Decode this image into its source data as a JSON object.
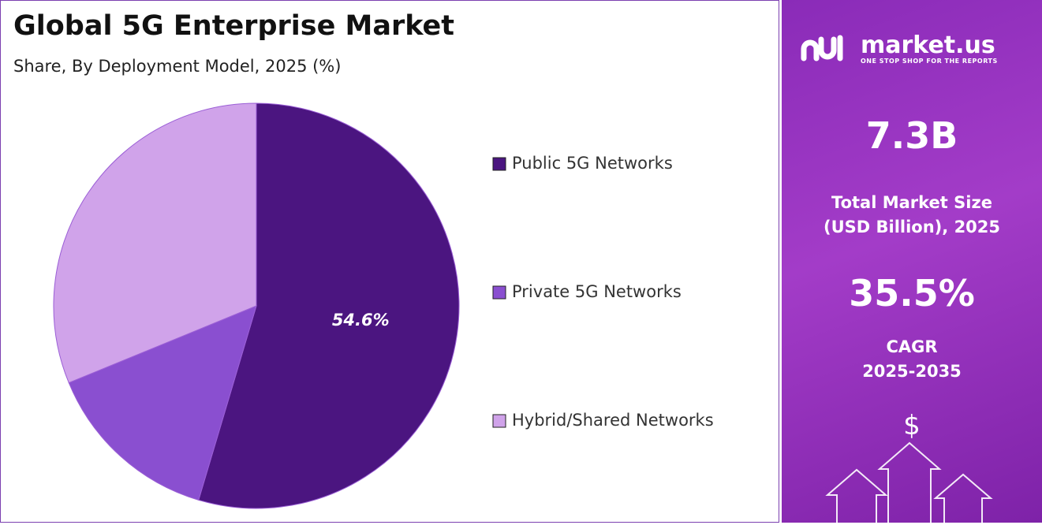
{
  "chart_data": {
    "type": "pie",
    "title": "Global 5G Enterprise Market",
    "subtitle": "Share, By Deployment Model, 2025 (%)",
    "categories": [
      "Public 5G Networks",
      "Private 5G Networks",
      "Hybrid/Shared Networks"
    ],
    "values": [
      54.6,
      14.2,
      31.2
    ],
    "value_labels": [
      "54.6%",
      null,
      null
    ],
    "colors": [
      "#4b1580",
      "#8a4fd0",
      "#d0a3ea"
    ]
  },
  "panel": {
    "brand": "market.us",
    "tagline": "ONE STOP SHOP FOR THE REPORTS",
    "market_size": "7.3B",
    "market_size_label": [
      "Total Market Size",
      "(USD Billion), 2025"
    ],
    "cagr": "35.5%",
    "cagr_label": [
      "CAGR",
      "2025-2035"
    ],
    "icon": "$"
  }
}
